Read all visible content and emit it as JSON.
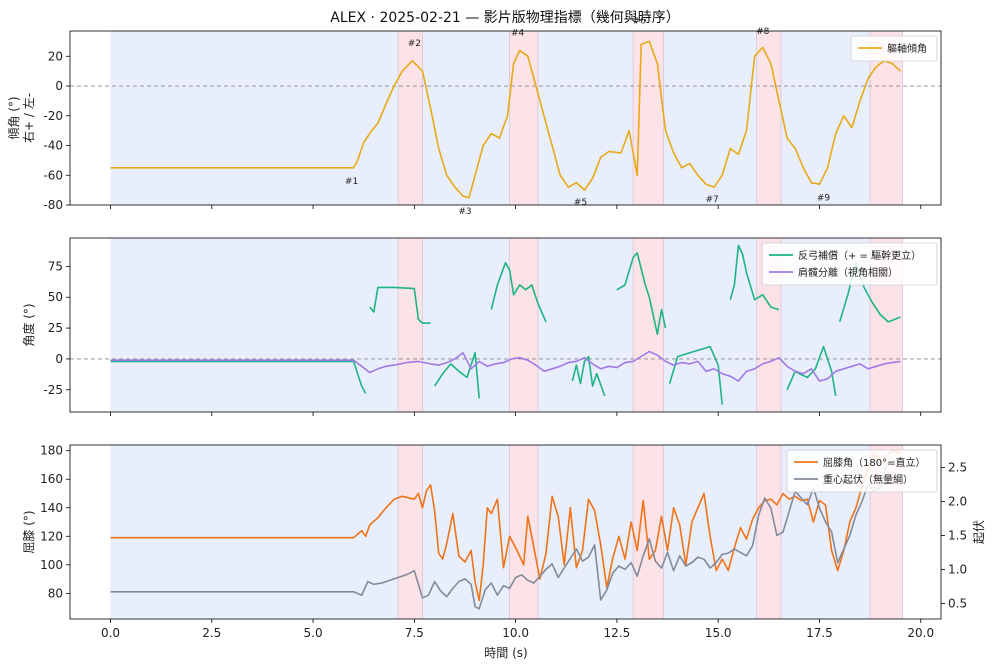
{
  "figure": {
    "title": "ALEX · 2025-02-21 — 影片版物理指標（幾何與時序）",
    "xlabel": "時間 (s)"
  },
  "chart_data": [
    {
      "type": "line",
      "panel": "top",
      "ylabel": "傾角 (°)",
      "ylabel2": "右+ / 左-",
      "xlim": [
        -1,
        20.5
      ],
      "ylim": [
        -80,
        37
      ],
      "xticks": [
        0.0,
        2.5,
        5.0,
        7.5,
        10.0,
        12.5,
        15.0,
        17.5,
        20.0
      ],
      "yticks": [
        -80,
        -60,
        -40,
        -20,
        0,
        20
      ],
      "reference_line": 0,
      "legend": "top-right",
      "grid": false,
      "series": [
        {
          "name": "軀軸傾角",
          "color": "#e8a917",
          "x": [
            0.0,
            6.0,
            6.1,
            6.25,
            6.45,
            6.6,
            6.8,
            7.0,
            7.2,
            7.45,
            7.7,
            7.9,
            8.1,
            8.3,
            8.5,
            8.7,
            8.85,
            9.0,
            9.2,
            9.4,
            9.6,
            9.8,
            9.95,
            10.1,
            10.3,
            10.5,
            10.7,
            10.9,
            11.1,
            11.3,
            11.5,
            11.7,
            11.9,
            12.1,
            12.3,
            12.6,
            12.8,
            13.0,
            13.1,
            13.3,
            13.5,
            13.7,
            13.9,
            14.1,
            14.3,
            14.5,
            14.7,
            14.9,
            15.1,
            15.3,
            15.5,
            15.7,
            15.9,
            16.1,
            16.3,
            16.5,
            16.7,
            16.9,
            17.1,
            17.3,
            17.5,
            17.7,
            17.9,
            18.1,
            18.3,
            18.5,
            18.7,
            18.9,
            19.1,
            19.3,
            19.5
          ],
          "values": [
            -55,
            -55,
            -50,
            -38,
            -30,
            -25,
            -12,
            0,
            10,
            17,
            10,
            -15,
            -42,
            -60,
            -68,
            -74,
            -75,
            -60,
            -40,
            -32,
            -35,
            -20,
            15,
            24,
            20,
            0,
            -20,
            -40,
            -60,
            -68,
            -65,
            -70,
            -62,
            -48,
            -44,
            -45,
            -30,
            -60,
            28,
            30,
            15,
            -30,
            -45,
            -55,
            -52,
            -60,
            -66,
            -68,
            -60,
            -42,
            -46,
            -30,
            20,
            26,
            15,
            -10,
            -35,
            -42,
            -55,
            -65,
            -66,
            -55,
            -32,
            -20,
            -28,
            -10,
            5,
            13,
            17,
            15,
            10
          ]
        }
      ],
      "annotations": [
        {
          "text": "#1",
          "x": 5.95,
          "y": -66
        },
        {
          "text": "#2",
          "x": 7.5,
          "y": 27
        },
        {
          "text": "#3",
          "x": 8.75,
          "y": -86
        },
        {
          "text": "#4",
          "x": 10.05,
          "y": 34
        },
        {
          "text": "#5",
          "x": 11.6,
          "y": -80
        },
        {
          "text": "#6",
          "x": 13.05,
          "y": 42
        },
        {
          "text": "#7",
          "x": 14.85,
          "y": -78
        },
        {
          "text": "#8",
          "x": 16.1,
          "y": 35
        },
        {
          "text": "#9",
          "x": 17.6,
          "y": -77
        }
      ]
    },
    {
      "type": "line",
      "panel": "middle",
      "ylabel": "角度 (°)",
      "xlim": [
        -1,
        20.5
      ],
      "ylim": [
        -43,
        98
      ],
      "yticks": [
        -25,
        0,
        25,
        50,
        75
      ],
      "reference_line": 0,
      "legend": "top-right",
      "grid": false,
      "series": [
        {
          "name": "反弓補償（+ = 驅幹更立）",
          "color": "#1db583",
          "segments": [
            {
              "x": [
                0.0,
                6.0,
                6.1,
                6.2,
                6.3
              ],
              "values": [
                -2,
                -2,
                -12,
                -22,
                -28
              ]
            },
            {
              "x": [
                6.4,
                6.5,
                6.6,
                6.8,
                7.0,
                7.5,
                7.6,
                7.7,
                7.9
              ],
              "values": [
                42,
                38,
                58,
                58,
                58,
                57,
                32,
                29,
                29
              ]
            },
            {
              "x": [
                8.0,
                8.2,
                8.4,
                8.6,
                8.8,
                9.0,
                9.1
              ],
              "values": [
                -22,
                -12,
                -4,
                -10,
                -15,
                5,
                -32
              ]
            },
            {
              "x": [
                9.4,
                9.55,
                9.75,
                9.85,
                9.95,
                10.1,
                10.25,
                10.4,
                10.55,
                10.75
              ],
              "values": [
                40,
                60,
                78,
                72,
                52,
                60,
                56,
                60,
                45,
                30
              ]
            },
            {
              "x": [
                11.4,
                11.5,
                11.6,
                11.7,
                11.8,
                11.9,
                12.0,
                12.2
              ],
              "values": [
                -18,
                -5,
                -20,
                -2,
                2,
                -22,
                -12,
                -30
              ]
            },
            {
              "x": [
                12.5,
                12.7,
                12.9,
                13.0,
                13.2,
                13.3,
                13.5,
                13.6,
                13.7
              ],
              "values": [
                56,
                60,
                82,
                86,
                60,
                50,
                20,
                40,
                25
              ]
            },
            {
              "x": [
                13.8,
                14.0,
                14.2,
                14.4,
                14.6,
                14.8,
                15.0,
                15.1
              ],
              "values": [
                -20,
                2,
                4,
                6,
                8,
                10,
                -5,
                -37
              ]
            },
            {
              "x": [
                15.3,
                15.4,
                15.5,
                15.6,
                15.7,
                15.9,
                16.1,
                16.3,
                16.5
              ],
              "values": [
                48,
                60,
                92,
                85,
                70,
                48,
                52,
                42,
                40
              ]
            },
            {
              "x": [
                16.7,
                16.9,
                17.0,
                17.2,
                17.4,
                17.6,
                17.8,
                17.9
              ],
              "values": [
                -25,
                -10,
                -12,
                -15,
                -8,
                10,
                -10,
                -30
              ]
            },
            {
              "x": [
                18.0,
                18.2,
                18.4,
                18.6,
                18.8,
                19.0,
                19.2,
                19.5
              ],
              "values": [
                30,
                52,
                78,
                58,
                46,
                36,
                30,
                34
              ]
            }
          ]
        },
        {
          "name": "肩髖分離（視角相關）",
          "color": "#a07ae6",
          "x": [
            0.0,
            6.0,
            6.2,
            6.4,
            6.6,
            6.8,
            7.0,
            7.3,
            7.6,
            7.9,
            8.1,
            8.3,
            8.5,
            8.7,
            8.9,
            9.1,
            9.3,
            9.5,
            9.7,
            9.9,
            10.1,
            10.3,
            10.5,
            10.7,
            10.9,
            11.1,
            11.3,
            11.5,
            11.7,
            11.9,
            12.1,
            12.3,
            12.5,
            12.7,
            12.9,
            13.1,
            13.3,
            13.5,
            13.7,
            13.9,
            14.1,
            14.3,
            14.5,
            14.7,
            14.9,
            15.1,
            15.3,
            15.5,
            15.7,
            15.9,
            16.1,
            16.3,
            16.5,
            16.7,
            16.9,
            17.1,
            17.3,
            17.5,
            17.7,
            17.9,
            18.1,
            18.3,
            18.5,
            18.7,
            18.9,
            19.1,
            19.3,
            19.5
          ],
          "values": [
            -1,
            -1,
            -6,
            -11,
            -8,
            -6,
            -5,
            -3,
            -2,
            -4,
            -5,
            -3,
            0,
            5,
            -8,
            -2,
            -6,
            -4,
            -3,
            0,
            1,
            -1,
            -5,
            -10,
            -8,
            -6,
            -3,
            -2,
            1,
            -4,
            -8,
            -6,
            -7,
            -3,
            -2,
            2,
            6,
            3,
            -2,
            -5,
            -3,
            -4,
            -2,
            -10,
            -8,
            -12,
            -14,
            -18,
            -10,
            -8,
            -4,
            -2,
            1,
            -6,
            -10,
            -12,
            -8,
            -18,
            -16,
            -10,
            -8,
            -6,
            -4,
            -8,
            -6,
            -4,
            -3,
            -2
          ]
        }
      ]
    },
    {
      "type": "line",
      "panel": "bottom",
      "ylabel": "屈膝 (°)",
      "ylabel_right": "起伏",
      "xlim": [
        -1,
        20.5
      ],
      "ylim": [
        62,
        184
      ],
      "yticks": [
        80,
        100,
        120,
        140,
        160,
        180
      ],
      "ylim_right": [
        0.27,
        2.83
      ],
      "yticks_right": [
        0.5,
        1.0,
        1.5,
        2.0,
        2.5
      ],
      "legend": "top-right",
      "grid": false,
      "series": [
        {
          "name": "屈膝角（180°=直立）",
          "color": "#f07318",
          "axis": "left",
          "x": [
            0.0,
            6.0,
            6.2,
            6.3,
            6.4,
            6.6,
            6.8,
            7.0,
            7.2,
            7.5,
            7.6,
            7.7,
            7.8,
            7.9,
            8.0,
            8.1,
            8.2,
            8.3,
            8.45,
            8.6,
            8.75,
            8.9,
            9.0,
            9.1,
            9.2,
            9.3,
            9.4,
            9.55,
            9.7,
            9.85,
            10.0,
            10.1,
            10.2,
            10.3,
            10.45,
            10.6,
            10.75,
            10.9,
            11.05,
            11.2,
            11.35,
            11.5,
            11.65,
            11.8,
            11.95,
            12.1,
            12.25,
            12.4,
            12.55,
            12.7,
            12.85,
            13.0,
            13.15,
            13.3,
            13.45,
            13.6,
            13.75,
            13.9,
            14.05,
            14.2,
            14.35,
            14.5,
            14.65,
            14.8,
            14.95,
            15.1,
            15.25,
            15.4,
            15.55,
            15.7,
            15.85,
            16.0,
            16.15,
            16.3,
            16.45,
            16.6,
            16.75,
            16.9,
            17.05,
            17.2,
            17.35,
            17.5,
            17.65,
            17.8,
            17.95,
            18.1,
            18.25,
            18.4,
            18.55,
            18.7,
            18.85,
            19.0,
            19.15,
            19.3,
            19.5
          ],
          "values": [
            119,
            119,
            124,
            120,
            128,
            133,
            140,
            146,
            148,
            146,
            150,
            140,
            152,
            156,
            138,
            108,
            104,
            115,
            136,
            106,
            102,
            110,
            88,
            75,
            100,
            140,
            136,
            146,
            98,
            120,
            112,
            106,
            100,
            134,
            112,
            90,
            108,
            148,
            134,
            100,
            140,
            98,
            110,
            146,
            138,
            114,
            84,
            105,
            120,
            104,
            130,
            110,
            145,
            104,
            110,
            134,
            110,
            140,
            128,
            100,
            130,
            140,
            150,
            120,
            96,
            104,
            96,
            112,
            126,
            118,
            132,
            140,
            145,
            146,
            142,
            150,
            146,
            148,
            145,
            146,
            130,
            145,
            142,
            110,
            96,
            110,
            130,
            140,
            155,
            168,
            178,
            172,
            176,
            180,
            178
          ]
        },
        {
          "name": "重心起伏（無量綱）",
          "color": "#838a9a",
          "axis": "right",
          "x": [
            0.0,
            6.0,
            6.2,
            6.35,
            6.5,
            6.7,
            6.9,
            7.1,
            7.3,
            7.5,
            7.7,
            7.85,
            8.0,
            8.15,
            8.3,
            8.45,
            8.6,
            8.75,
            8.9,
            9.0,
            9.1,
            9.25,
            9.4,
            9.55,
            9.7,
            9.85,
            10.0,
            10.15,
            10.3,
            10.45,
            10.6,
            10.75,
            10.9,
            11.05,
            11.2,
            11.35,
            11.5,
            11.65,
            11.8,
            11.95,
            12.1,
            12.25,
            12.4,
            12.55,
            12.7,
            12.85,
            13.0,
            13.15,
            13.3,
            13.45,
            13.6,
            13.75,
            13.9,
            14.05,
            14.2,
            14.35,
            14.5,
            14.65,
            14.8,
            14.95,
            15.1,
            15.25,
            15.4,
            15.55,
            15.7,
            15.85,
            16.0,
            16.15,
            16.3,
            16.45,
            16.6,
            16.75,
            16.9,
            17.05,
            17.2,
            17.35,
            17.5,
            17.65,
            17.8,
            17.95,
            18.1,
            18.25,
            18.4,
            18.55,
            18.7,
            18.85,
            19.0,
            19.15,
            19.3,
            19.5
          ],
          "values": [
            0.67,
            0.67,
            0.62,
            0.82,
            0.78,
            0.8,
            0.84,
            0.88,
            0.92,
            0.98,
            0.58,
            0.62,
            0.82,
            0.68,
            0.6,
            0.72,
            0.82,
            0.86,
            0.78,
            0.45,
            0.42,
            0.7,
            0.8,
            0.62,
            0.76,
            0.72,
            0.88,
            0.92,
            0.84,
            0.8,
            0.9,
            1.0,
            1.08,
            0.88,
            1.02,
            1.16,
            1.3,
            1.12,
            1.18,
            1.36,
            0.55,
            0.7,
            0.95,
            1.05,
            1.0,
            1.1,
            0.9,
            1.2,
            1.45,
            1.12,
            1.02,
            1.25,
            0.98,
            1.2,
            1.05,
            1.1,
            1.18,
            1.15,
            1.02,
            1.1,
            1.22,
            1.24,
            1.3,
            1.25,
            1.2,
            1.35,
            1.8,
            2.05,
            1.9,
            1.5,
            1.55,
            1.85,
            2.15,
            2.05,
            1.95,
            2.2,
            1.9,
            1.7,
            1.55,
            1.1,
            1.3,
            1.5,
            1.8,
            2.0,
            2.25,
            2.15,
            2.2,
            2.55,
            2.6,
            2.58
          ]
        }
      ]
    }
  ],
  "phases": {
    "axis_span": [
      0.0,
      19.5
    ],
    "base_color": "#e8eefb",
    "highlight_color": "#fbe3e7",
    "highlights": [
      [
        7.1,
        7.7
      ],
      [
        9.85,
        10.55
      ],
      [
        12.9,
        13.65
      ],
      [
        15.95,
        16.55
      ],
      [
        18.75,
        19.55
      ]
    ]
  }
}
